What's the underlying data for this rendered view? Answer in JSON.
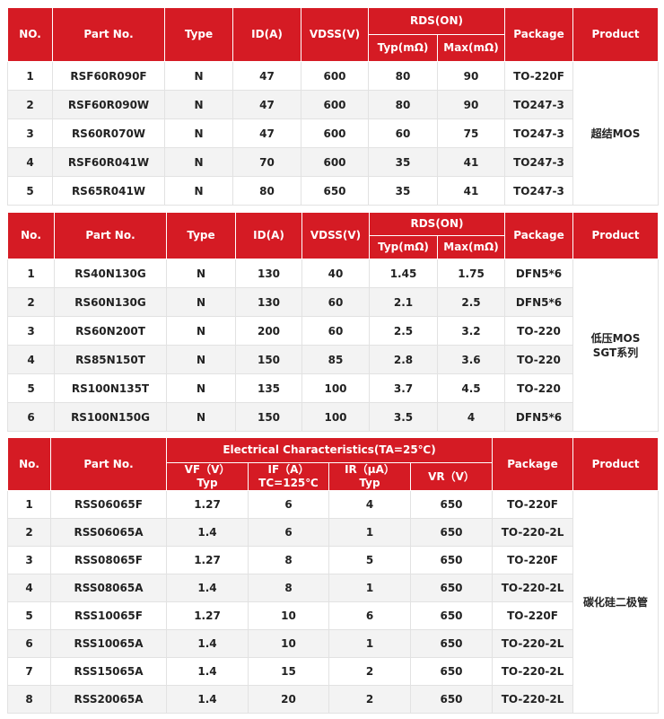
{
  "tables": [
    {
      "headers": [
        "NO.",
        "Part No.",
        "Type",
        "ID(A)",
        "VDSS(V)",
        "RDS(ON)",
        "Typ(mΩ)",
        "Max(mΩ)",
        "Package",
        "Product"
      ],
      "rows": [
        [
          "1",
          "RSF60R090F",
          "N",
          "47",
          "600",
          "80",
          "90",
          "TO-220F"
        ],
        [
          "2",
          "RSF60R090W",
          "N",
          "47",
          "600",
          "80",
          "90",
          "TO247-3"
        ],
        [
          "3",
          "RS60R070W",
          "N",
          "47",
          "600",
          "60",
          "75",
          "TO247-3"
        ],
        [
          "4",
          "RSF60R041W",
          "N",
          "70",
          "600",
          "35",
          "41",
          "TO247-3"
        ],
        [
          "5",
          "RS65R041W",
          "N",
          "80",
          "650",
          "35",
          "41",
          "TO247-3"
        ]
      ],
      "product": [
        "超结MOS"
      ]
    },
    {
      "headers": [
        "No.",
        "Part No.",
        "Type",
        "ID(A)",
        "VDSS(V)",
        "RDS(ON)",
        "Typ(mΩ)",
        "Max(mΩ)",
        "Package",
        "Product"
      ],
      "rows": [
        [
          "1",
          "RS40N130G",
          "N",
          "130",
          "40",
          "1.45",
          "1.75",
          "DFN5*6"
        ],
        [
          "2",
          "RS60N130G",
          "N",
          "130",
          "60",
          "2.1",
          "2.5",
          "DFN5*6"
        ],
        [
          "3",
          "RS60N200T",
          "N",
          "200",
          "60",
          "2.5",
          "3.2",
          "TO-220"
        ],
        [
          "4",
          "RS85N150T",
          "N",
          "150",
          "85",
          "2.8",
          "3.6",
          "TO-220"
        ],
        [
          "5",
          "RS100N135T",
          "N",
          "135",
          "100",
          "3.7",
          "4.5",
          "TO-220"
        ],
        [
          "6",
          "RS100N150G",
          "N",
          "150",
          "100",
          "3.5",
          "4",
          "DFN5*6"
        ]
      ],
      "product": [
        "低压MOS",
        "SGT系列"
      ]
    },
    {
      "headers": [
        "No.",
        "Part No.",
        "Electrical  Characteristics(TA=25℃)",
        [
          "VF（V）",
          "Typ"
        ],
        [
          "IF（A）",
          "TC=125℃"
        ],
        [
          "IR（μA）",
          "Typ"
        ],
        "VR（V）",
        "Package",
        "Product"
      ],
      "rows": [
        [
          "1",
          "RSS06065F",
          "1.27",
          "6",
          "4",
          "650",
          "TO-220F"
        ],
        [
          "2",
          "RSS06065A",
          "1.4",
          "6",
          "1",
          "650",
          "TO-220-2L"
        ],
        [
          "3",
          "RSS08065F",
          "1.27",
          "8",
          "5",
          "650",
          "TO-220F"
        ],
        [
          "4",
          "RSS08065A",
          "1.4",
          "8",
          "1",
          "650",
          "TO-220-2L"
        ],
        [
          "5",
          "RSS10065F",
          "1.27",
          "10",
          "6",
          "650",
          "TO-220F"
        ],
        [
          "6",
          "RSS10065A",
          "1.4",
          "10",
          "1",
          "650",
          "TO-220-2L"
        ],
        [
          "7",
          "RSS15065A",
          "1.4",
          "15",
          "2",
          "650",
          "TO-220-2L"
        ],
        [
          "8",
          "RSS20065A",
          "1.4",
          "20",
          "2",
          "650",
          "TO-220-2L"
        ]
      ],
      "product": [
        "碳化硅二极管"
      ]
    }
  ]
}
